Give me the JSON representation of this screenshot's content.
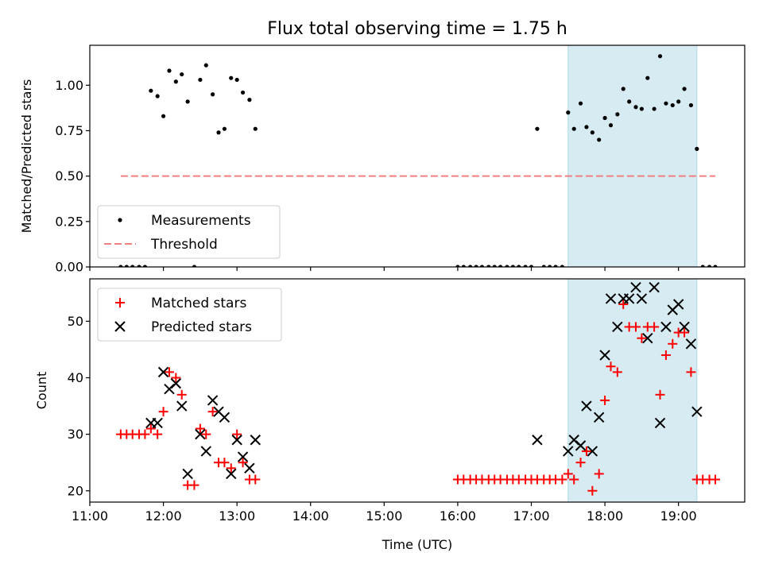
{
  "chart_data": {
    "title": "Flux total observing time = 1.75 h",
    "xlabel": "Time (UTC)",
    "xlim": [
      11.0,
      19.9
    ],
    "x_ticks": [
      {
        "value": 11,
        "label": "11:00"
      },
      {
        "value": 12,
        "label": "12:00"
      },
      {
        "value": 13,
        "label": "13:00"
      },
      {
        "value": 14,
        "label": "14:00"
      },
      {
        "value": 15,
        "label": "15:00"
      },
      {
        "value": 16,
        "label": "16:00"
      },
      {
        "value": 17,
        "label": "17:00"
      },
      {
        "value": 18,
        "label": "18:00"
      },
      {
        "value": 19,
        "label": "19:00"
      }
    ],
    "shaded_region": {
      "x_start": 17.5,
      "x_end": 19.25,
      "color": "#add8e6"
    },
    "panels": [
      {
        "type": "scatter",
        "ylabel": "Matched/Predicted stars",
        "ylim": [
          0,
          1.22
        ],
        "y_ticks": [
          {
            "value": 0,
            "label": "0.00"
          },
          {
            "value": 0.25,
            "label": "0.25"
          },
          {
            "value": 0.5,
            "label": "0.50"
          },
          {
            "value": 0.75,
            "label": "0.75"
          },
          {
            "value": 1.0,
            "label": "1.00"
          }
        ],
        "legend_position": "lower-left",
        "series": [
          {
            "name": "Measurements",
            "marker": "dot",
            "color": "#000000",
            "points": [
              [
                11.42,
                0
              ],
              [
                11.5,
                0
              ],
              [
                11.58,
                0
              ],
              [
                11.67,
                0
              ],
              [
                11.75,
                0
              ],
              [
                11.83,
                0.97
              ],
              [
                11.92,
                0.94
              ],
              [
                12.0,
                0.83
              ],
              [
                12.08,
                1.08
              ],
              [
                12.17,
                1.02
              ],
              [
                12.25,
                1.06
              ],
              [
                12.33,
                0.91
              ],
              [
                12.42,
                0
              ],
              [
                12.5,
                1.03
              ],
              [
                12.58,
                1.11
              ],
              [
                12.67,
                0.95
              ],
              [
                12.75,
                0.74
              ],
              [
                12.83,
                0.76
              ],
              [
                12.92,
                1.04
              ],
              [
                13.0,
                1.03
              ],
              [
                13.08,
                0.96
              ],
              [
                13.17,
                0.92
              ],
              [
                13.25,
                0.76
              ],
              [
                16.0,
                0
              ],
              [
                16.08,
                0
              ],
              [
                16.17,
                0
              ],
              [
                16.25,
                0
              ],
              [
                16.33,
                0
              ],
              [
                16.42,
                0
              ],
              [
                16.5,
                0
              ],
              [
                16.58,
                0
              ],
              [
                16.67,
                0
              ],
              [
                16.75,
                0
              ],
              [
                16.83,
                0
              ],
              [
                16.92,
                0
              ],
              [
                17.0,
                0
              ],
              [
                17.08,
                0.76
              ],
              [
                17.17,
                0
              ],
              [
                17.25,
                0
              ],
              [
                17.33,
                0
              ],
              [
                17.42,
                0
              ],
              [
                17.5,
                0.85
              ],
              [
                17.58,
                0.76
              ],
              [
                17.67,
                0.9
              ],
              [
                17.75,
                0.77
              ],
              [
                17.83,
                0.74
              ],
              [
                17.92,
                0.7
              ],
              [
                18.0,
                0.82
              ],
              [
                18.08,
                0.78
              ],
              [
                18.17,
                0.84
              ],
              [
                18.25,
                0.98
              ],
              [
                18.33,
                0.91
              ],
              [
                18.42,
                0.88
              ],
              [
                18.5,
                0.87
              ],
              [
                18.58,
                1.04
              ],
              [
                18.67,
                0.87
              ],
              [
                18.75,
                1.16
              ],
              [
                18.83,
                0.9
              ],
              [
                18.92,
                0.89
              ],
              [
                19.0,
                0.91
              ],
              [
                19.08,
                0.98
              ],
              [
                19.17,
                0.89
              ],
              [
                19.25,
                0.65
              ],
              [
                19.33,
                0
              ],
              [
                19.42,
                0
              ],
              [
                19.5,
                0
              ]
            ]
          },
          {
            "name": "Threshold",
            "marker": "dashed-line",
            "color": "#f08080",
            "points": [
              [
                11.42,
                0.5
              ],
              [
                19.5,
                0.5
              ]
            ]
          }
        ]
      },
      {
        "type": "scatter",
        "ylabel": "Count",
        "ylim": [
          18,
          57.5
        ],
        "y_ticks": [
          {
            "value": 20,
            "label": "20"
          },
          {
            "value": 30,
            "label": "30"
          },
          {
            "value": 40,
            "label": "40"
          },
          {
            "value": 50,
            "label": "50"
          }
        ],
        "legend_position": "upper-left",
        "series": [
          {
            "name": "Matched stars",
            "marker": "plus",
            "color": "#ff0000",
            "points": [
              [
                11.42,
                30
              ],
              [
                11.5,
                30
              ],
              [
                11.58,
                30
              ],
              [
                11.67,
                30
              ],
              [
                11.75,
                30
              ],
              [
                11.83,
                31
              ],
              [
                11.92,
                30
              ],
              [
                12.0,
                34
              ],
              [
                12.08,
                41
              ],
              [
                12.17,
                40
              ],
              [
                12.25,
                37
              ],
              [
                12.33,
                21
              ],
              [
                12.42,
                21
              ],
              [
                12.5,
                31
              ],
              [
                12.58,
                30
              ],
              [
                12.67,
                34
              ],
              [
                12.75,
                25
              ],
              [
                12.83,
                25
              ],
              [
                12.92,
                24
              ],
              [
                13.0,
                30
              ],
              [
                13.08,
                25
              ],
              [
                13.17,
                22
              ],
              [
                13.25,
                22
              ],
              [
                16.0,
                22
              ],
              [
                16.08,
                22
              ],
              [
                16.17,
                22
              ],
              [
                16.25,
                22
              ],
              [
                16.33,
                22
              ],
              [
                16.42,
                22
              ],
              [
                16.5,
                22
              ],
              [
                16.58,
                22
              ],
              [
                16.67,
                22
              ],
              [
                16.75,
                22
              ],
              [
                16.83,
                22
              ],
              [
                16.92,
                22
              ],
              [
                17.0,
                22
              ],
              [
                17.08,
                22
              ],
              [
                17.17,
                22
              ],
              [
                17.25,
                22
              ],
              [
                17.33,
                22
              ],
              [
                17.42,
                22
              ],
              [
                17.5,
                23
              ],
              [
                17.58,
                22
              ],
              [
                17.67,
                25
              ],
              [
                17.75,
                27
              ],
              [
                17.83,
                20
              ],
              [
                17.92,
                23
              ],
              [
                18.0,
                36
              ],
              [
                18.08,
                42
              ],
              [
                18.17,
                41
              ],
              [
                18.25,
                53
              ],
              [
                18.33,
                49
              ],
              [
                18.42,
                49
              ],
              [
                18.5,
                47
              ],
              [
                18.58,
                49
              ],
              [
                18.67,
                49
              ],
              [
                18.75,
                37
              ],
              [
                18.83,
                44
              ],
              [
                18.92,
                46
              ],
              [
                19.0,
                48
              ],
              [
                19.08,
                48
              ],
              [
                19.17,
                41
              ],
              [
                19.25,
                22
              ],
              [
                19.33,
                22
              ],
              [
                19.42,
                22
              ],
              [
                19.5,
                22
              ]
            ]
          },
          {
            "name": "Predicted stars",
            "marker": "x",
            "color": "#000000",
            "points": [
              [
                11.83,
                32
              ],
              [
                11.92,
                32
              ],
              [
                12.0,
                41
              ],
              [
                12.08,
                38
              ],
              [
                12.17,
                39
              ],
              [
                12.25,
                35
              ],
              [
                12.33,
                23
              ],
              [
                12.5,
                30
              ],
              [
                12.58,
                27
              ],
              [
                12.67,
                36
              ],
              [
                12.75,
                34
              ],
              [
                12.83,
                33
              ],
              [
                12.92,
                23
              ],
              [
                13.0,
                29
              ],
              [
                13.08,
                26
              ],
              [
                13.17,
                24
              ],
              [
                13.25,
                29
              ],
              [
                17.08,
                29
              ],
              [
                17.5,
                27
              ],
              [
                17.58,
                29
              ],
              [
                17.67,
                28
              ],
              [
                17.75,
                35
              ],
              [
                17.83,
                27
              ],
              [
                17.92,
                33
              ],
              [
                18.0,
                44
              ],
              [
                18.08,
                54
              ],
              [
                18.17,
                49
              ],
              [
                18.25,
                54
              ],
              [
                18.33,
                54
              ],
              [
                18.42,
                56
              ],
              [
                18.5,
                54
              ],
              [
                18.58,
                47
              ],
              [
                18.67,
                56
              ],
              [
                18.75,
                32
              ],
              [
                18.83,
                49
              ],
              [
                18.92,
                52
              ],
              [
                19.0,
                53
              ],
              [
                19.08,
                49
              ],
              [
                19.17,
                46
              ],
              [
                19.25,
                34
              ]
            ]
          }
        ]
      }
    ]
  }
}
